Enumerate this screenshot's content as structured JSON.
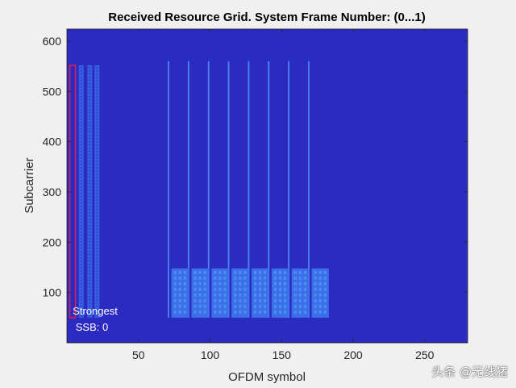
{
  "chart_data": {
    "type": "heatmap",
    "title": "Received Resource Grid. System Frame Number: (0...1)",
    "xlabel": "OFDM symbol",
    "ylabel": "Subcarrier",
    "xlim": [
      0,
      280
    ],
    "ylim": [
      0,
      624
    ],
    "xticks": [
      50,
      100,
      150,
      200,
      250
    ],
    "yticks": [
      100,
      200,
      300,
      400,
      500,
      600
    ],
    "colors": {
      "background": "#2b2bc2",
      "strong_line": "#4a86ee",
      "block": "#3b6ee8",
      "block_bright": "#4a90f0",
      "ssb_box": "#e0204a"
    },
    "pdcch_columns_x": [
      10,
      16,
      21
    ],
    "pdcch_columns_range": [
      50,
      552
    ],
    "vertical_lines_x": [
      71,
      85,
      99,
      113,
      127,
      141,
      155,
      169
    ],
    "vertical_lines_range": [
      50,
      560
    ],
    "ssb_blocks": [
      {
        "x0": 73,
        "x1": 85
      },
      {
        "x0": 87,
        "x1": 99
      },
      {
        "x0": 101,
        "x1": 113
      },
      {
        "x0": 115,
        "x1": 127
      },
      {
        "x0": 129,
        "x1": 141
      },
      {
        "x0": 143,
        "x1": 155
      },
      {
        "x0": 157,
        "x1": 169
      },
      {
        "x0": 171,
        "x1": 183
      }
    ],
    "ssb_blocks_y": [
      50,
      148
    ],
    "strongest_ssb_box": {
      "x0": 2,
      "x1": 6,
      "y0": 50,
      "y1": 552
    },
    "annotation": [
      "Strongest",
      "SSB: 0"
    ]
  },
  "watermark": "头条 @无线猪"
}
